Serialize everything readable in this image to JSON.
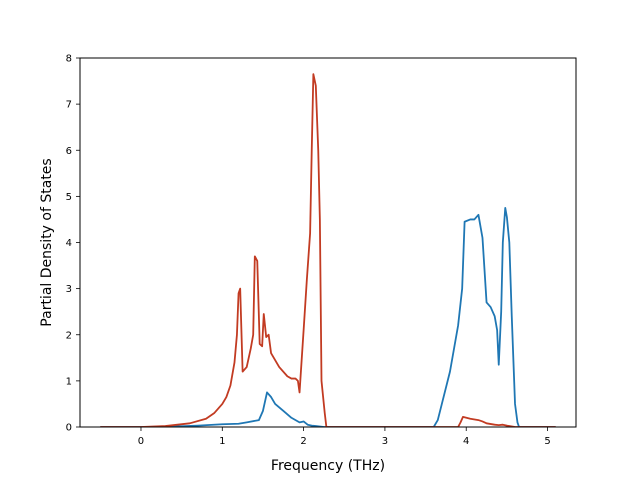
{
  "chart_data": {
    "type": "line",
    "title": "",
    "xlabel": "Frequency (THz)",
    "ylabel": "Partial Density of States",
    "xlim": [
      -0.75,
      5.35
    ],
    "ylim": [
      0,
      8
    ],
    "xticks": [
      0,
      1,
      2,
      3,
      4,
      5
    ],
    "yticks": [
      0,
      1,
      2,
      3,
      4,
      5,
      6,
      7,
      8
    ],
    "grid": false,
    "legend": "none",
    "series": [
      {
        "color": "#1f77b4",
        "points": [
          [
            -0.5,
            0.0
          ],
          [
            0.0,
            0.0
          ],
          [
            0.4,
            0.01
          ],
          [
            0.7,
            0.03
          ],
          [
            1.0,
            0.06
          ],
          [
            1.2,
            0.07
          ],
          [
            1.3,
            0.1
          ],
          [
            1.45,
            0.15
          ],
          [
            1.5,
            0.35
          ],
          [
            1.55,
            0.75
          ],
          [
            1.6,
            0.65
          ],
          [
            1.65,
            0.5
          ],
          [
            1.75,
            0.35
          ],
          [
            1.85,
            0.2
          ],
          [
            1.95,
            0.1
          ],
          [
            2.0,
            0.12
          ],
          [
            2.05,
            0.05
          ],
          [
            2.1,
            0.03
          ],
          [
            2.15,
            0.02
          ],
          [
            2.25,
            0.0
          ],
          [
            3.6,
            0.0
          ],
          [
            3.65,
            0.15
          ],
          [
            3.7,
            0.5
          ],
          [
            3.8,
            1.2
          ],
          [
            3.9,
            2.2
          ],
          [
            3.95,
            3.0
          ],
          [
            3.98,
            4.45
          ],
          [
            4.05,
            4.5
          ],
          [
            4.1,
            4.5
          ],
          [
            4.15,
            4.6
          ],
          [
            4.2,
            4.1
          ],
          [
            4.25,
            2.7
          ],
          [
            4.3,
            2.6
          ],
          [
            4.35,
            2.4
          ],
          [
            4.38,
            2.1
          ],
          [
            4.4,
            1.35
          ],
          [
            4.43,
            2.5
          ],
          [
            4.45,
            4.0
          ],
          [
            4.48,
            4.75
          ],
          [
            4.5,
            4.55
          ],
          [
            4.53,
            4.0
          ],
          [
            4.56,
            2.4
          ],
          [
            4.6,
            0.5
          ],
          [
            4.63,
            0.1
          ],
          [
            4.65,
            0.0
          ],
          [
            5.1,
            0.0
          ]
        ]
      },
      {
        "color": "#c23b22",
        "points": [
          [
            -0.5,
            0.0
          ],
          [
            0.0,
            0.0
          ],
          [
            0.3,
            0.02
          ],
          [
            0.6,
            0.08
          ],
          [
            0.8,
            0.18
          ],
          [
            0.9,
            0.3
          ],
          [
            1.0,
            0.5
          ],
          [
            1.05,
            0.65
          ],
          [
            1.1,
            0.9
          ],
          [
            1.15,
            1.4
          ],
          [
            1.18,
            2.0
          ],
          [
            1.2,
            2.9
          ],
          [
            1.22,
            3.0
          ],
          [
            1.25,
            1.2
          ],
          [
            1.3,
            1.3
          ],
          [
            1.35,
            1.7
          ],
          [
            1.38,
            2.0
          ],
          [
            1.4,
            3.7
          ],
          [
            1.43,
            3.6
          ],
          [
            1.46,
            1.8
          ],
          [
            1.49,
            1.75
          ],
          [
            1.51,
            2.45
          ],
          [
            1.54,
            1.95
          ],
          [
            1.57,
            2.0
          ],
          [
            1.6,
            1.6
          ],
          [
            1.7,
            1.3
          ],
          [
            1.8,
            1.1
          ],
          [
            1.85,
            1.05
          ],
          [
            1.9,
            1.05
          ],
          [
            1.93,
            1.0
          ],
          [
            1.95,
            0.75
          ],
          [
            2.0,
            2.1
          ],
          [
            2.04,
            3.2
          ],
          [
            2.08,
            4.2
          ],
          [
            2.1,
            6.0
          ],
          [
            2.12,
            7.65
          ],
          [
            2.15,
            7.4
          ],
          [
            2.18,
            6.0
          ],
          [
            2.2,
            4.5
          ],
          [
            2.22,
            1.0
          ],
          [
            2.26,
            0.3
          ],
          [
            2.28,
            0.0
          ],
          [
            3.9,
            0.0
          ],
          [
            3.93,
            0.1
          ],
          [
            3.96,
            0.22
          ],
          [
            4.05,
            0.18
          ],
          [
            4.15,
            0.15
          ],
          [
            4.2,
            0.12
          ],
          [
            4.25,
            0.08
          ],
          [
            4.35,
            0.05
          ],
          [
            4.4,
            0.04
          ],
          [
            4.45,
            0.05
          ],
          [
            4.5,
            0.03
          ],
          [
            4.6,
            0.0
          ],
          [
            5.1,
            0.0
          ]
        ]
      }
    ]
  }
}
